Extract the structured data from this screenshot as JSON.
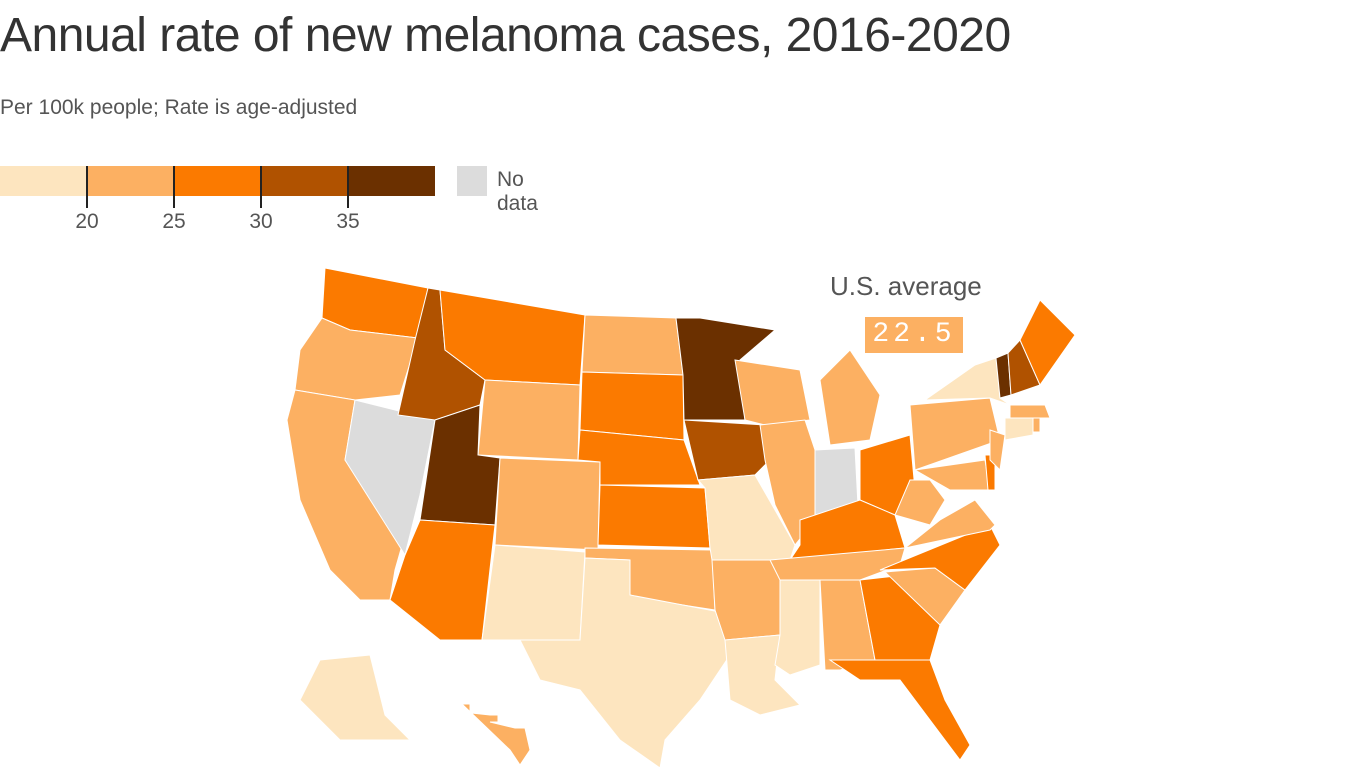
{
  "title": "Annual rate of new melanoma cases, 2016-2020",
  "subtitle": "Per 100k people; Rate is age-adjusted",
  "legend": {
    "bins": [
      {
        "range": "<20",
        "color": "#fde5bf"
      },
      {
        "range": "20-25",
        "color": "#fcb062"
      },
      {
        "range": "25-30",
        "color": "#fb7a00"
      },
      {
        "range": "30-35",
        "color": "#b05200"
      },
      {
        "range": "35+",
        "color": "#6b3000"
      }
    ],
    "ticks": [
      "20",
      "25",
      "30",
      "35"
    ],
    "no_data_label": "No data",
    "no_data_color": "#dcdcdc"
  },
  "us_average": {
    "label": "U.S. average",
    "value": "22.5"
  },
  "states": {
    "WA": 2,
    "OR": 1,
    "CA": 1,
    "NV": null,
    "ID": 3,
    "MT": 2,
    "WY": 1,
    "UT": 4,
    "AZ": 2,
    "CO": 1,
    "NM": 0,
    "ND": 1,
    "SD": 2,
    "NE": 2,
    "KS": 2,
    "OK": 1,
    "TX": 0,
    "MN": 4,
    "IA": 3,
    "MO": 0,
    "AR": 1,
    "LA": 0,
    "WI": 1,
    "IL": 1,
    "MI": 1,
    "IN": null,
    "OH": 2,
    "KY": 2,
    "TN": 1,
    "MS": 0,
    "AL": 1,
    "GA": 2,
    "FL": 2,
    "SC": 1,
    "NC": 2,
    "VA": 1,
    "WV": 1,
    "MD": 1,
    "DE": 2,
    "PA": 1,
    "NJ": 1,
    "NY": 0,
    "CT": 0,
    "RI": 1,
    "MA": 1,
    "VT": 4,
    "NH": 3,
    "ME": 2,
    "AK": 0,
    "HI": 1
  }
}
